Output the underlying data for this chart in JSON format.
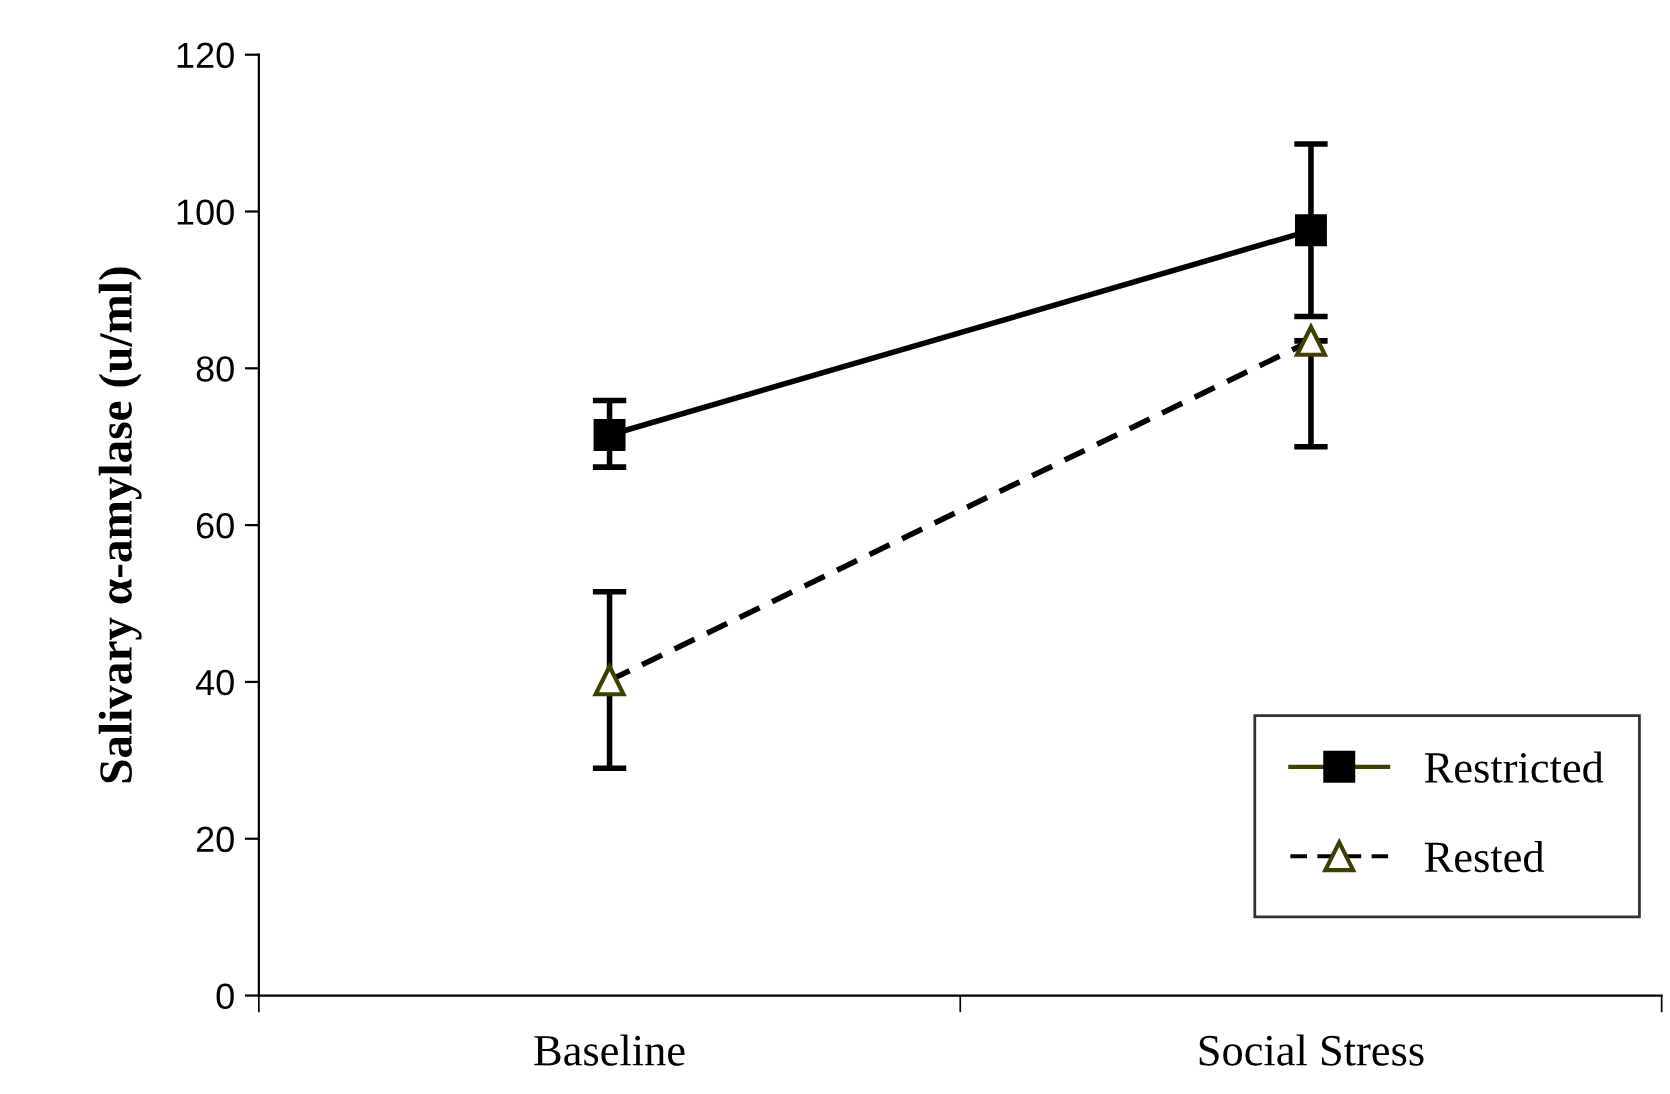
{
  "chart_data": {
    "type": "line",
    "ylabel": "Salivary α-amylase (u/ml)",
    "categories": [
      "Baseline",
      "Social Stress"
    ],
    "ylim": [
      0,
      120
    ],
    "yticks": [
      0,
      20,
      40,
      60,
      80,
      100,
      120
    ],
    "grid": false,
    "legend": "bottom right",
    "series": [
      {
        "name": "Restricted",
        "color": "#000000",
        "values": [
          71.5,
          97.6
        ],
        "errors": [
          [
            67.4,
            75.9
          ],
          [
            86.6,
            108.6
          ]
        ],
        "marker": "square",
        "line_style": "solid"
      },
      {
        "name": "Rested",
        "color": "#000000",
        "values": [
          40.2,
          83.5
        ],
        "errors": [
          [
            29,
            51.5
          ],
          [
            70,
            83.5
          ]
        ],
        "marker": "triangle",
        "line_style": "dashed"
      }
    ]
  }
}
